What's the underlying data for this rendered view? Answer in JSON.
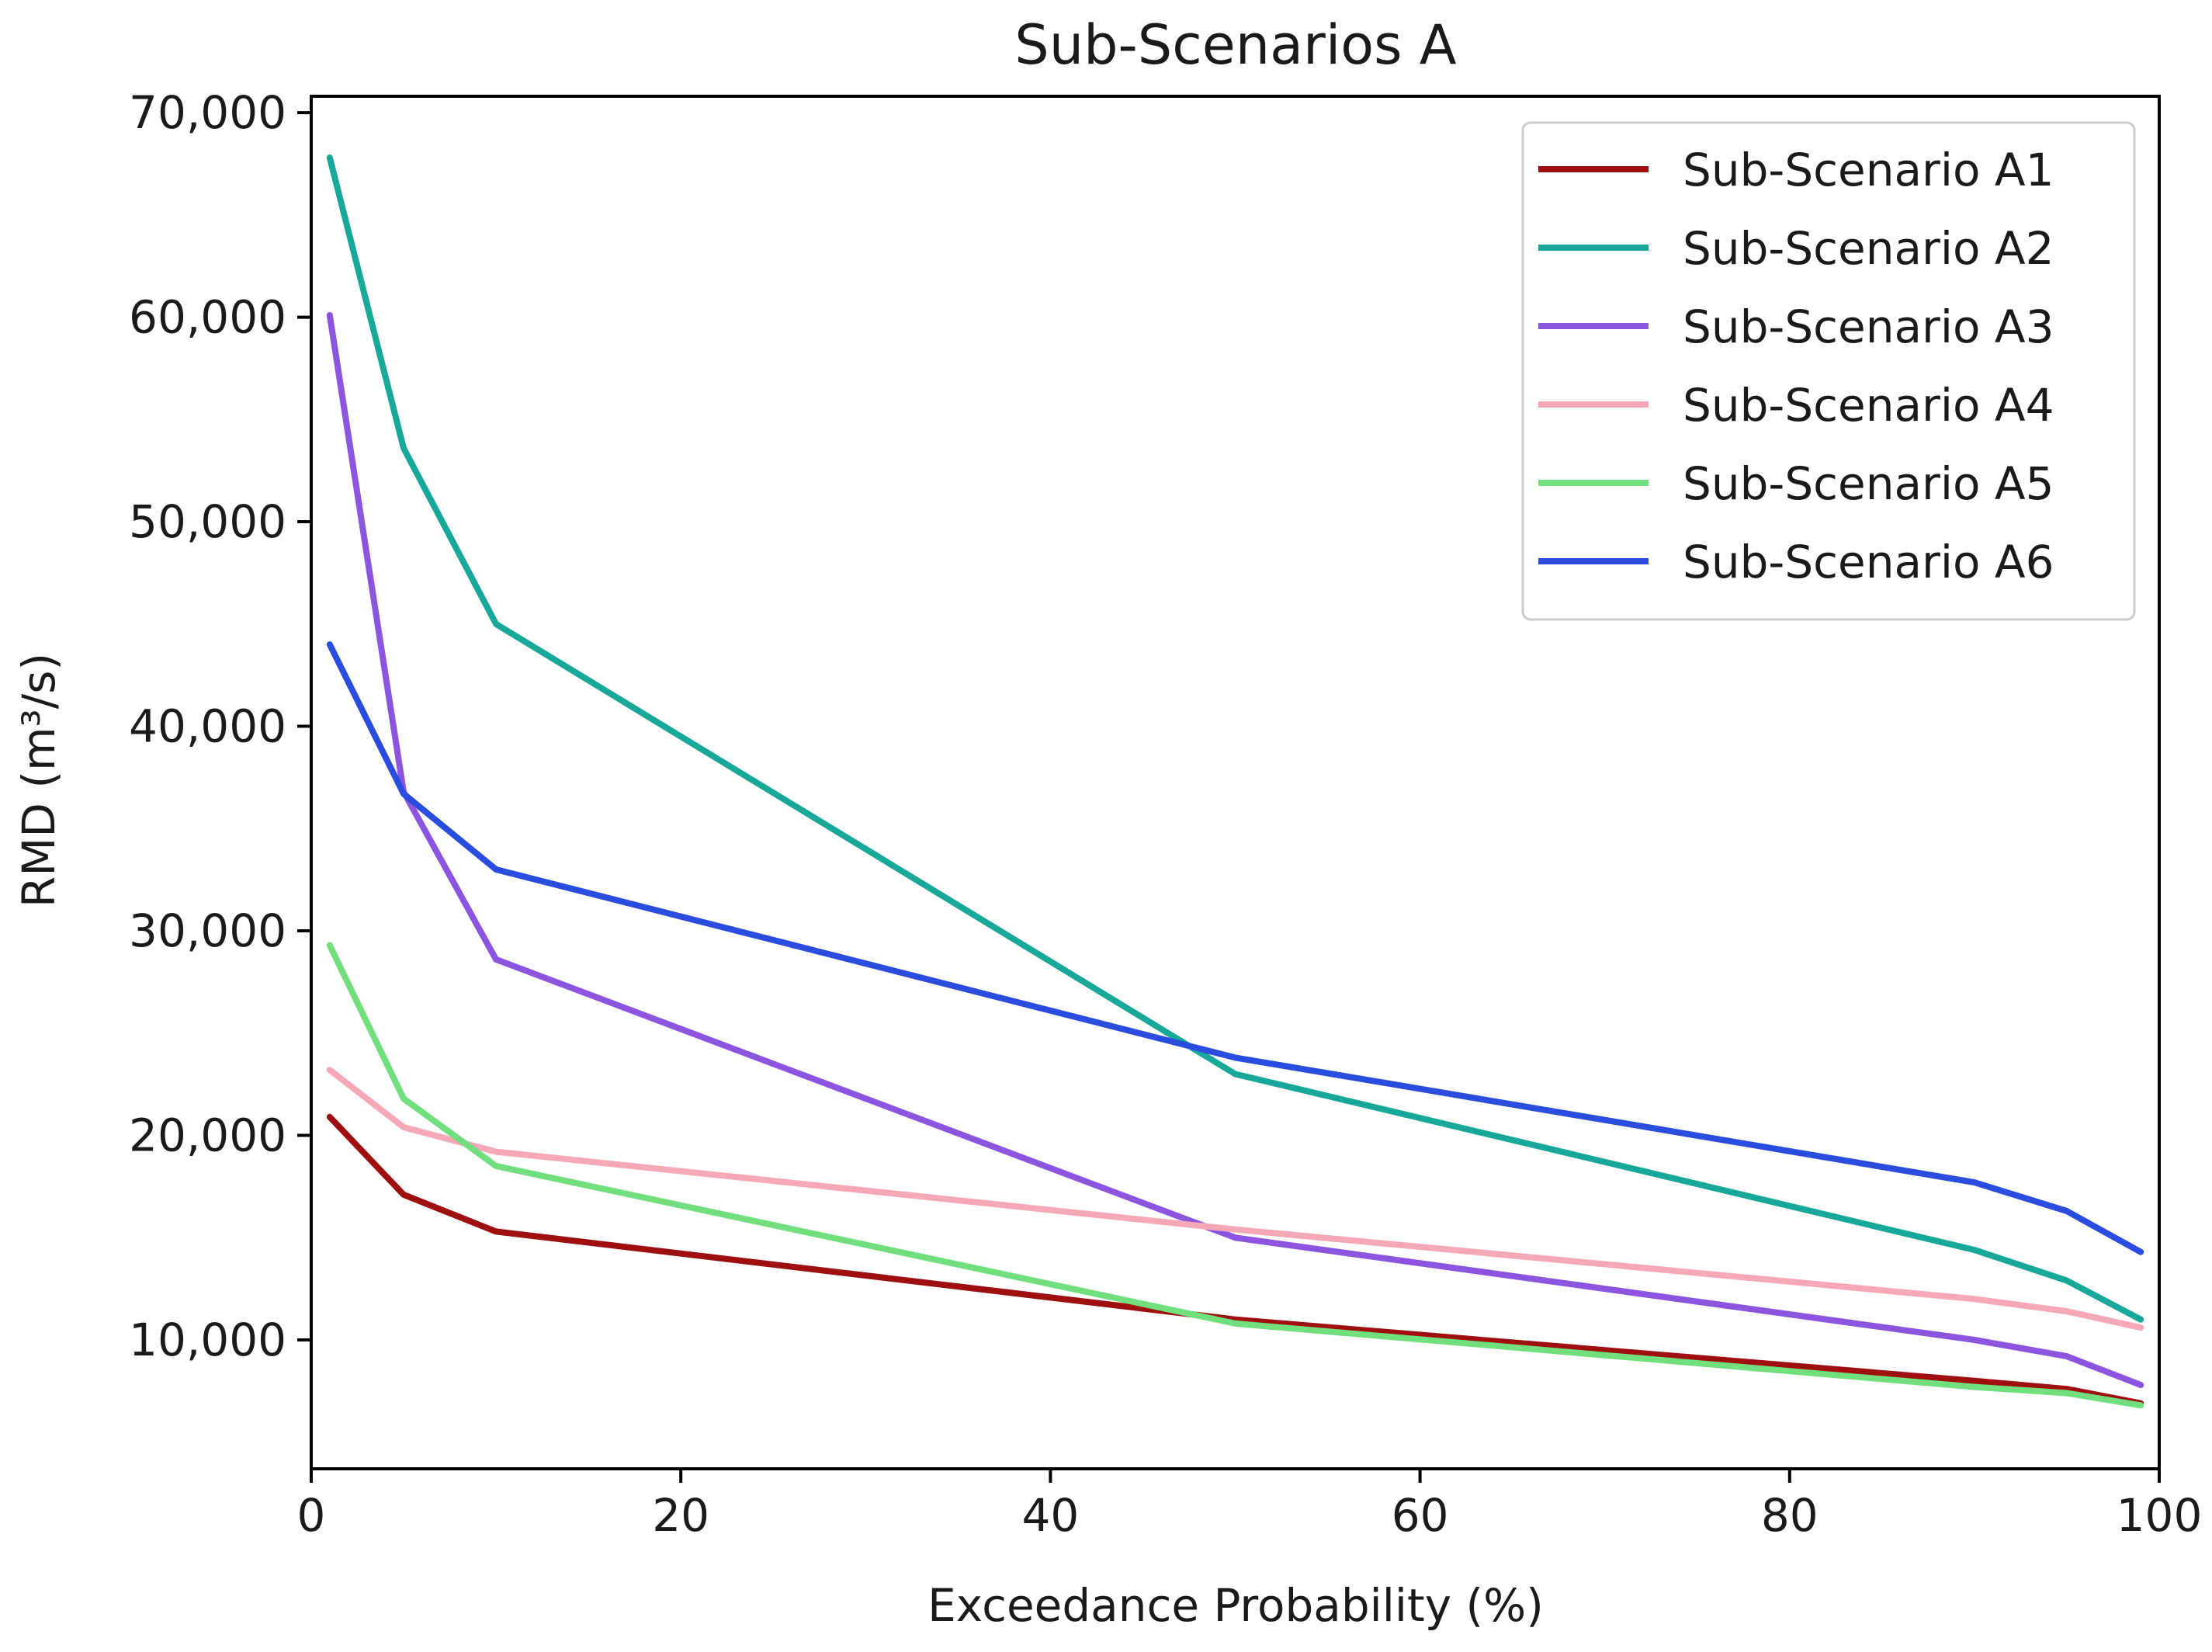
{
  "chart_data": {
    "type": "line",
    "title": "Sub-Scenarios A",
    "xlabel": "Exceedance Probability (%)",
    "ylabel": "RMD (m³/s)",
    "xlim": [
      0,
      100
    ],
    "ylim": [
      3700,
      70800
    ],
    "xticks": [
      0,
      20,
      40,
      60,
      80,
      100
    ],
    "xtick_labels": [
      "0",
      "20",
      "40",
      "60",
      "80",
      "100"
    ],
    "yticks": [
      10000,
      20000,
      30000,
      40000,
      50000,
      60000,
      70000
    ],
    "ytick_labels": [
      "10,000",
      "20,000",
      "30,000",
      "40,000",
      "50,000",
      "60,000",
      "70,000"
    ],
    "grid": false,
    "legend_position": "top-right",
    "x": [
      1,
      5,
      10,
      50,
      90,
      95,
      99
    ],
    "series": [
      {
        "name": "Sub-Scenario A1",
        "color": "#a00f0f",
        "values": [
          20900,
          17100,
          15300,
          11000,
          8000,
          7600,
          6900
        ]
      },
      {
        "name": "Sub-Scenario A2",
        "color": "#17a89a",
        "values": [
          67800,
          53600,
          45000,
          23000,
          14400,
          12900,
          11000
        ]
      },
      {
        "name": "Sub-Scenario A3",
        "color": "#8b55e0",
        "values": [
          60100,
          36800,
          28600,
          15000,
          10000,
          9200,
          7800
        ]
      },
      {
        "name": "Sub-Scenario A4",
        "color": "#f7a8b8",
        "values": [
          23200,
          20400,
          19200,
          15400,
          12000,
          11400,
          10600
        ]
      },
      {
        "name": "Sub-Scenario A5",
        "color": "#72df7e",
        "values": [
          29300,
          21800,
          18500,
          10800,
          7700,
          7400,
          6800
        ]
      },
      {
        "name": "Sub-Scenario A6",
        "color": "#2a4de0",
        "values": [
          44000,
          36700,
          33000,
          23800,
          17700,
          16300,
          14300
        ]
      }
    ]
  }
}
